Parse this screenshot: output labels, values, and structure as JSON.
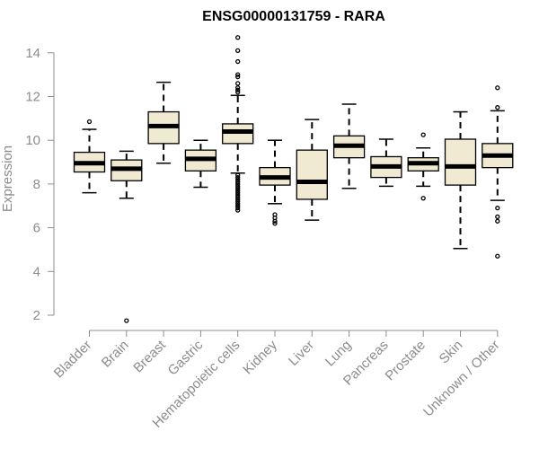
{
  "chart_data": {
    "type": "box",
    "title": "ENSG00000131759 - RARA",
    "xlabel": "",
    "ylabel": "Expression",
    "ylim": [
      1.5,
      15
    ],
    "yticks": [
      2,
      4,
      6,
      8,
      10,
      12,
      14
    ],
    "grid": false,
    "legend": "none",
    "colors": {
      "box_fill": "#f0ead2",
      "stroke": "#000000",
      "axis": "#8c8c8c",
      "text": "#8c8c8c"
    },
    "categories": [
      "Bladder",
      "Brain",
      "Breast",
      "Gastric",
      "Hematopoietic cells",
      "Kidney",
      "Liver",
      "Lung",
      "Pancreas",
      "Prostate",
      "Skin",
      "Unknown / Other"
    ],
    "boxes": [
      {
        "category": "Bladder",
        "whisker_low": 7.6,
        "q1": 8.55,
        "median": 8.95,
        "q3": 9.45,
        "whisker_high": 10.5,
        "outliers": [
          10.85
        ]
      },
      {
        "category": "Brain",
        "whisker_low": 7.35,
        "q1": 8.15,
        "median": 8.7,
        "q3": 9.1,
        "whisker_high": 9.5,
        "outliers": [
          1.75
        ]
      },
      {
        "category": "Breast",
        "whisker_low": 8.95,
        "q1": 9.85,
        "median": 10.65,
        "q3": 11.3,
        "whisker_high": 12.65,
        "outliers": []
      },
      {
        "category": "Gastric",
        "whisker_low": 7.85,
        "q1": 8.6,
        "median": 9.15,
        "q3": 9.55,
        "whisker_high": 10.0,
        "outliers": []
      },
      {
        "category": "Hematopoietic cells",
        "whisker_low": 8.5,
        "q1": 9.85,
        "median": 10.4,
        "q3": 10.75,
        "whisker_high": 12.05,
        "outliers": [
          14.7,
          14.1,
          13.6,
          13.0,
          12.9,
          12.6,
          12.4,
          12.3,
          12.2,
          8.4,
          8.3,
          8.2,
          8.1,
          8.0,
          7.9,
          7.8,
          7.7,
          7.6,
          7.5,
          7.4,
          7.3,
          7.2,
          7.1,
          7.0,
          6.9,
          6.8
        ]
      },
      {
        "category": "Kidney",
        "whisker_low": 7.1,
        "q1": 7.95,
        "median": 8.3,
        "q3": 8.75,
        "whisker_high": 10.0,
        "outliers": [
          6.6,
          6.45,
          6.3,
          6.2
        ]
      },
      {
        "category": "Liver",
        "whisker_low": 6.35,
        "q1": 7.3,
        "median": 8.1,
        "q3": 9.55,
        "whisker_high": 10.95,
        "outliers": []
      },
      {
        "category": "Lung",
        "whisker_low": 7.8,
        "q1": 9.2,
        "median": 9.75,
        "q3": 10.2,
        "whisker_high": 11.65,
        "outliers": []
      },
      {
        "category": "Pancreas",
        "whisker_low": 7.9,
        "q1": 8.3,
        "median": 8.8,
        "q3": 9.25,
        "whisker_high": 10.05,
        "outliers": []
      },
      {
        "category": "Prostate",
        "whisker_low": 7.9,
        "q1": 8.6,
        "median": 8.95,
        "q3": 9.2,
        "whisker_high": 9.65,
        "outliers": [
          10.25,
          7.35
        ]
      },
      {
        "category": "Skin",
        "whisker_low": 5.05,
        "q1": 7.95,
        "median": 8.8,
        "q3": 10.05,
        "whisker_high": 11.3,
        "outliers": []
      },
      {
        "category": "Unknown / Other",
        "whisker_low": 7.25,
        "q1": 8.75,
        "median": 9.3,
        "q3": 9.85,
        "whisker_high": 11.35,
        "outliers": [
          12.4,
          11.5,
          6.9,
          6.5,
          6.3,
          4.7
        ]
      }
    ]
  }
}
